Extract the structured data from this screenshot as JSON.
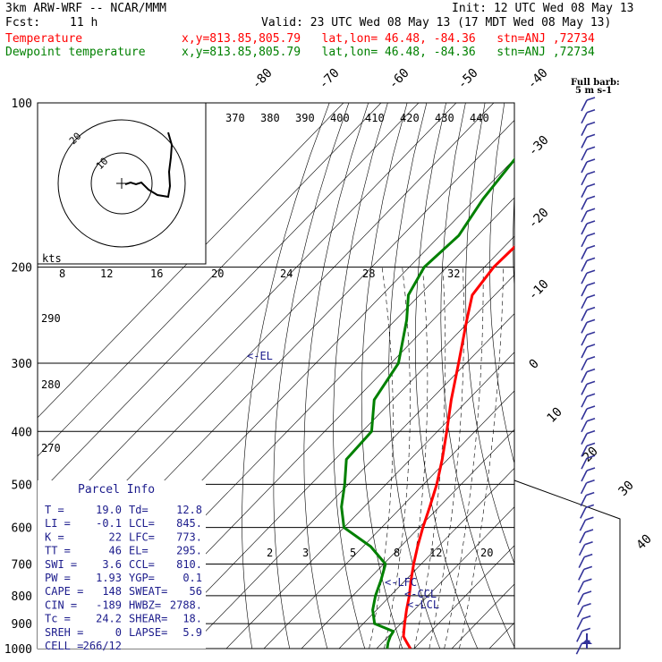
{
  "header": {
    "model": "3km ARW-WRF -- NCAR/MMM",
    "init": "Init: 12 UTC Wed 08 May 13",
    "fcst_label": "Fcst:",
    "fcst_value": "11 h",
    "valid": "Valid: 23 UTC Wed 08 May 13 (17 MDT Wed 08 May 13)",
    "temp_label": "Temperature",
    "temp_info": "x,y=813.85,805.79   lat,lon= 46.48, -84.36   stn=ANJ ,72734",
    "dew_label": "Dewpoint temperature",
    "dew_info": "x,y=813.85,805.79   lat,lon= 46.48, -84.36   stn=ANJ ,72734"
  },
  "colors": {
    "temperature": "#ff0000",
    "dewpoint": "#008000",
    "barbs": "#333399",
    "text": "#000000",
    "info": "#1c1c8c"
  },
  "barb_legend": {
    "line1": "Full barb:",
    "line2": "5 m s-1"
  },
  "parcel_info": {
    "title": "Parcel Info",
    "rows": [
      {
        "l1": "T",
        "v1": "19.0",
        "l2": "Td",
        "v2": "12.8"
      },
      {
        "l1": "LI",
        "v1": "-0.1",
        "l2": "LCL",
        "v2": "845."
      },
      {
        "l1": "K",
        "v1": "22",
        "l2": "LFC",
        "v2": "773."
      },
      {
        "l1": "TT",
        "v1": "46",
        "l2": "EL",
        "v2": "295."
      },
      {
        "l1": "SWI",
        "v1": "3.6",
        "l2": "CCL",
        "v2": "810."
      },
      {
        "l1": "PW",
        "v1": "1.93",
        "l2": "YGP",
        "v2": "0.1"
      },
      {
        "l1": "CAPE",
        "v1": "148",
        "l2": "SWEAT",
        "v2": "56"
      },
      {
        "l1": "CIN",
        "v1": "-189",
        "l2": "HWBZ",
        "v2": "2788."
      },
      {
        "l1": "Tc",
        "v1": "24.2",
        "l2": "SHEAR",
        "v2": "18."
      },
      {
        "l1": "SREH",
        "v1": "0",
        "l2": "LAPSE",
        "v2": "5.9"
      },
      {
        "l1": "CELL",
        "v1": "266/12",
        "l2": "",
        "v2": ""
      }
    ]
  },
  "level_markers": {
    "lfc": "<-LFC",
    "ccl": "<-CCL",
    "lcl": "<-LCL",
    "el": "<-EL"
  },
  "hodograph": {
    "unit_label": "kts",
    "ring_labels": [
      "20",
      "10"
    ]
  },
  "chart_data": {
    "type": "skew-T log-p",
    "title": "",
    "pressure_levels": [
      100,
      200,
      300,
      400,
      500,
      600,
      700,
      800,
      900,
      1000
    ],
    "isotherm_labels": [
      "-80",
      "-70",
      "-60",
      "-50",
      "-40",
      "-30",
      "-20",
      "-10",
      "0",
      "10",
      "20",
      "30",
      "40"
    ],
    "theta_labels": [
      "370",
      "380",
      "390",
      "400",
      "410",
      "420",
      "430",
      "440"
    ],
    "dry_adiabat_labels": [
      "290",
      "280",
      "270"
    ],
    "mixing_ratio_labels": [
      "8",
      "12",
      "16",
      "20",
      "24",
      "28",
      "32"
    ],
    "mixing_ratio_low_labels": [
      "2",
      "3",
      "5",
      "8",
      "12",
      "20"
    ],
    "series": [
      {
        "name": "Temperature",
        "points": [
          {
            "p": 1000,
            "t": 19.0
          },
          {
            "p": 975,
            "t": 16.5
          },
          {
            "p": 950,
            "t": 14.0
          },
          {
            "p": 900,
            "t": 11.0
          },
          {
            "p": 850,
            "t": 8.0
          },
          {
            "p": 800,
            "t": 5.0
          },
          {
            "p": 750,
            "t": 1.5
          },
          {
            "p": 700,
            "t": -2.0
          },
          {
            "p": 650,
            "t": -5.5
          },
          {
            "p": 600,
            "t": -9.0
          },
          {
            "p": 550,
            "t": -12.5
          },
          {
            "p": 500,
            "t": -16.5
          },
          {
            "p": 450,
            "t": -21.5
          },
          {
            "p": 400,
            "t": -27.5
          },
          {
            "p": 350,
            "t": -34.5
          },
          {
            "p": 300,
            "t": -42.0
          },
          {
            "p": 250,
            "t": -51.0
          },
          {
            "p": 225,
            "t": -56.0
          },
          {
            "p": 200,
            "t": -57.5
          },
          {
            "p": 175,
            "t": -57.0
          },
          {
            "p": 150,
            "t": -57.5
          },
          {
            "p": 125,
            "t": -58.0
          },
          {
            "p": 100,
            "t": -59.5
          }
        ]
      },
      {
        "name": "Dewpoint temperature",
        "points": [
          {
            "p": 1000,
            "t": 12.8
          },
          {
            "p": 975,
            "t": 11.5
          },
          {
            "p": 950,
            "t": 10.5
          },
          {
            "p": 930,
            "t": 10.0
          },
          {
            "p": 900,
            "t": 3.0
          },
          {
            "p": 850,
            "t": -1.0
          },
          {
            "p": 800,
            "t": -4.0
          },
          {
            "p": 750,
            "t": -6.5
          },
          {
            "p": 700,
            "t": -9.5
          },
          {
            "p": 650,
            "t": -18.0
          },
          {
            "p": 600,
            "t": -30.0
          },
          {
            "p": 550,
            "t": -36.0
          },
          {
            "p": 500,
            "t": -41.0
          },
          {
            "p": 450,
            "t": -47.0
          },
          {
            "p": 400,
            "t": -47.5
          },
          {
            "p": 350,
            "t": -55.0
          },
          {
            "p": 300,
            "t": -58.0
          },
          {
            "p": 250,
            "t": -67.0
          },
          {
            "p": 225,
            "t": -73.0
          },
          {
            "p": 200,
            "t": -76.0
          },
          {
            "p": 175,
            "t": -75.0
          },
          {
            "p": 150,
            "t": -78.0
          },
          {
            "p": 125,
            "t": -80.0
          },
          {
            "p": 100,
            "t": -83.0
          }
        ]
      }
    ],
    "wind_barbs": {
      "units": "m s-1",
      "count": 45
    }
  }
}
